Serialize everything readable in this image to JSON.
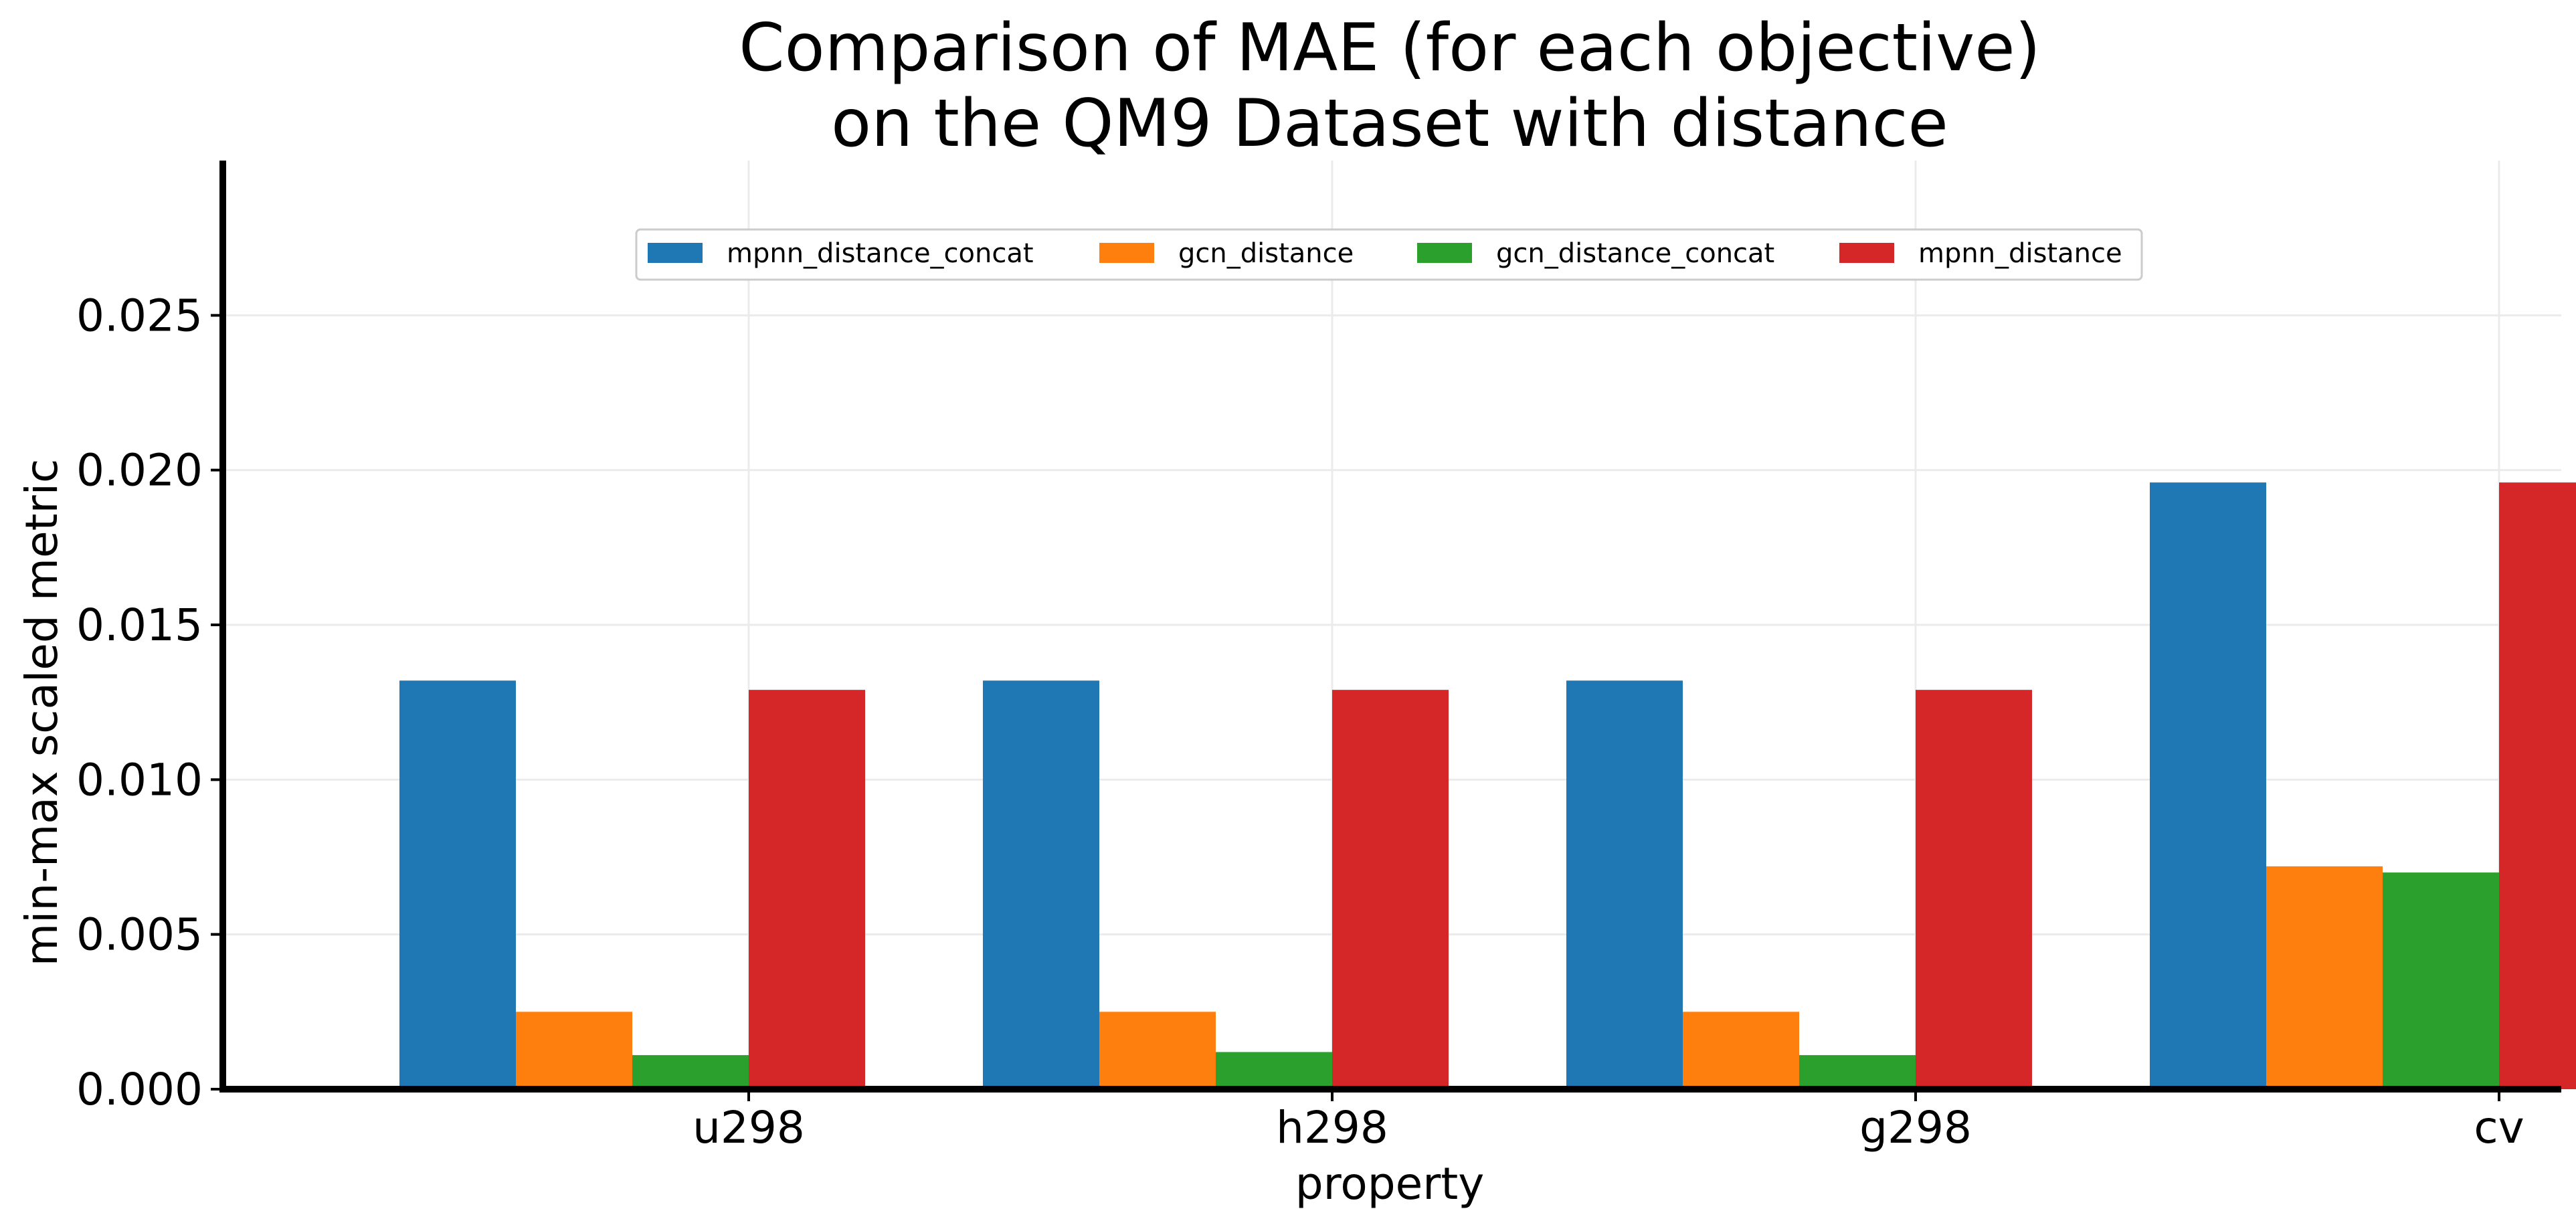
{
  "chart_data": {
    "type": "bar",
    "title": [
      "Comparison of MAE (for each objective)",
      "on the QM9 Dataset with distance"
    ],
    "xlabel": "property",
    "ylabel": "min-max scaled metric",
    "categories": [
      "u298",
      "h298",
      "g298",
      "cv"
    ],
    "ylim": [
      0,
      0.03
    ],
    "yticks": [
      0.0,
      0.005,
      0.01,
      0.015,
      0.02,
      0.025
    ],
    "ytick_labels": [
      "0.000",
      "0.005",
      "0.010",
      "0.015",
      "0.020",
      "0.025"
    ],
    "grid": true,
    "legend": {
      "position": "top-center",
      "columns": 4
    },
    "series": [
      {
        "name": "mpnn_distance_concat",
        "color": "#1f77b4",
        "values": [
          0.0132,
          0.0132,
          0.0132,
          0.0196
        ]
      },
      {
        "name": "gcn_distance",
        "color": "#ff7f0e",
        "values": [
          0.0025,
          0.0025,
          0.0025,
          0.0072
        ]
      },
      {
        "name": "gcn_distance_concat",
        "color": "#2ca02c",
        "values": [
          0.0011,
          0.0012,
          0.0011,
          0.007
        ]
      },
      {
        "name": "mpnn_distance",
        "color": "#d62728",
        "values": [
          0.0129,
          0.0129,
          0.0129,
          0.0196
        ]
      }
    ]
  }
}
